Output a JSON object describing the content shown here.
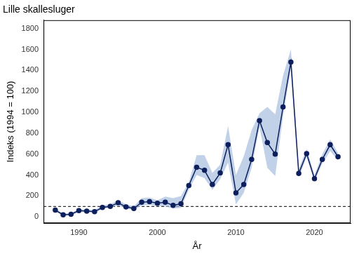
{
  "chart_data": {
    "type": "line",
    "title": "Lille skallesluger",
    "x_label": "År",
    "y_label": "Indeks (1994 = 100)",
    "x": [
      1987,
      1988,
      1989,
      1990,
      1991,
      1992,
      1993,
      1994,
      1995,
      1996,
      1997,
      1998,
      1999,
      2000,
      2001,
      2002,
      2003,
      2004,
      2005,
      2006,
      2007,
      2008,
      2009,
      2010,
      2011,
      2012,
      2013,
      2014,
      2015,
      2016,
      2017,
      2018,
      2019,
      2020,
      2021,
      2022,
      2023
    ],
    "values": [
      65,
      20,
      25,
      60,
      55,
      50,
      90,
      100,
      135,
      95,
      80,
      140,
      145,
      130,
      140,
      110,
      125,
      300,
      475,
      445,
      310,
      420,
      690,
      230,
      310,
      550,
      920,
      710,
      600,
      1050,
      1480,
      415,
      605,
      365,
      550,
      690,
      575
    ],
    "ci_lower": [
      50,
      10,
      15,
      45,
      45,
      40,
      75,
      90,
      110,
      80,
      65,
      110,
      115,
      105,
      100,
      80,
      85,
      260,
      400,
      370,
      260,
      360,
      520,
      120,
      230,
      470,
      860,
      470,
      390,
      960,
      1420,
      380,
      570,
      340,
      510,
      630,
      540
    ],
    "ci_upper": [
      80,
      30,
      35,
      75,
      70,
      65,
      110,
      120,
      160,
      120,
      100,
      180,
      185,
      160,
      195,
      180,
      200,
      330,
      590,
      590,
      420,
      500,
      870,
      400,
      580,
      830,
      990,
      1050,
      980,
      1350,
      1600,
      460,
      650,
      400,
      600,
      740,
      610
    ],
    "color": "#0d1f5c",
    "marker": "circle",
    "reference_line": 100,
    "reference_line_style": "dashed",
    "xlim": [
      1985.5,
      2024.6
    ],
    "xticks": [
      1990,
      2000,
      2010,
      2020
    ],
    "ylim": [
      -60,
      1880
    ],
    "yticks": [
      0,
      200,
      400,
      600,
      800,
      1000,
      1200,
      1400,
      1600,
      1800
    ],
    "grid": false,
    "legend": false
  }
}
